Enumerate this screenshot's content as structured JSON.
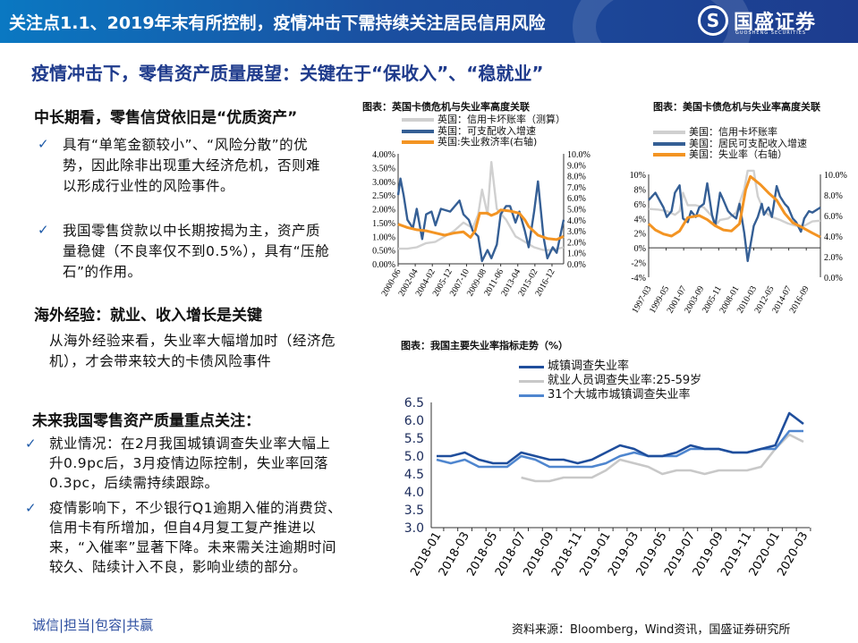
{
  "header": {
    "title": "关注点1.1、2019年末有所控制，疫情冲击下需持续关注居民信用风险",
    "logo_name": "国盛证券",
    "logo_en": "GUOSHENG SECURITIES",
    "logo_mark": "S"
  },
  "subtitle": "疫情冲击下，零售资产质量展望：关键在于“保收入”、“稳就业”",
  "left": {
    "section1": {
      "heading": "中长期看，零售信贷依旧是“优质资产”",
      "bullets": [
        "具有“单笔金额较小”、“风险分散”的优势，因此除非出现重大经济危机，否则难以形成行业性的风险事件。",
        "我国零售贷款以中长期按揭为主，资产质量稳健（不良率仅不到0.5%），具有“压舱石”的作用。"
      ]
    },
    "section2": {
      "heading": "海外经验：就业、收入增长是关键",
      "text": "从海外经验来看，失业率大幅增加时（经济危机），才会带来较大的卡债风险事件"
    },
    "section3": {
      "heading": "未来我国零售资产质量重点关注：",
      "bullets": [
        "就业情况：在2月我国城镇调查失业率大幅上升0.9pc后，3月疫情边际控制，失业率回落0.3pc，后续需持续跟踪。",
        "疫情影响下，不少银行Q1逾期入催的消费贷、信用卡有所增加，但自4月复工复产推进以来，“入催率”显著下降。未来需关注逾期时间较久、陆续计入不良，影响业绩的部分。"
      ]
    },
    "check_icon": "✓",
    "motto": "诚信|担当|包容|共赢"
  },
  "source": "资料来源：Bloomberg，Wind资讯，国盛证券研究所",
  "chart_data": [
    {
      "type": "line",
      "title": "图表：英国卡债危机与失业率高度关联",
      "xlim": [
        "2000-06",
        "2018-03"
      ],
      "xticks": [
        "2000-06",
        "2002-04",
        "2004-02",
        "2005-12",
        "2007-10",
        "2009-08",
        "2011-06",
        "2013-04",
        "2015-02",
        "2016-12"
      ],
      "yleft": {
        "lim": [
          0,
          4
        ],
        "ticks": [
          0,
          0.5,
          1,
          1.5,
          2,
          2.5,
          3,
          3.5,
          4
        ],
        "labels": [
          "0.00%",
          "0.50%",
          "1.00%",
          "1.50%",
          "2.00%",
          "2.50%",
          "3.00%",
          "3.50%",
          "4.00%"
        ]
      },
      "yright": {
        "lim": [
          0,
          10
        ],
        "ticks": [
          0,
          1,
          2,
          3,
          4,
          5,
          6,
          7,
          8,
          9,
          10
        ],
        "labels": [
          "0.0%",
          "1.0%",
          "2.0%",
          "3.0%",
          "4.0%",
          "5.0%",
          "6.0%",
          "7.0%",
          "8.0%",
          "9.0%",
          "10.0%"
        ]
      },
      "legend": "top-left",
      "grid": false,
      "series": [
        {
          "name": "英国：信用卡坏账率（测算）",
          "axis": "left",
          "color": "#d0d0d0",
          "points": [
            [
              "2000-06",
              0.55
            ],
            [
              "2001-06",
              0.55
            ],
            [
              "2002-06",
              0.6
            ],
            [
              "2003-06",
              0.75
            ],
            [
              "2004-06",
              0.8
            ],
            [
              "2005-06",
              1.0
            ],
            [
              "2006-06",
              1.2
            ],
            [
              "2007-06",
              1.5
            ],
            [
              "2008-06",
              1.3
            ],
            [
              "2009-01",
              1.8
            ],
            [
              "2009-06",
              2.7
            ],
            [
              "2010-01",
              1.8
            ],
            [
              "2010-06",
              3.7
            ],
            [
              "2011-01",
              2.0
            ],
            [
              "2012-01",
              1.6
            ],
            [
              "2013-01",
              1.0
            ],
            [
              "2014-01",
              0.8
            ],
            [
              "2015-01",
              0.6
            ],
            [
              "2016-01",
              0.5
            ],
            [
              "2017-01",
              0.5
            ],
            [
              "2018-03",
              0.6
            ]
          ]
        },
        {
          "name": "英国：可支配收入增速",
          "axis": "left",
          "color": "#355f95",
          "points": [
            [
              "2000-06",
              2.5
            ],
            [
              "2000-09",
              3.1
            ],
            [
              "2001-01",
              2.5
            ],
            [
              "2001-06",
              1.6
            ],
            [
              "2002-01",
              1.3
            ],
            [
              "2002-06",
              2.0
            ],
            [
              "2003-01",
              0.9
            ],
            [
              "2003-06",
              1.8
            ],
            [
              "2004-01",
              1.9
            ],
            [
              "2004-06",
              1.4
            ],
            [
              "2005-01",
              2.0
            ],
            [
              "2006-01",
              1.9
            ],
            [
              "2007-01",
              2.3
            ],
            [
              "2007-06",
              1.8
            ],
            [
              "2008-01",
              1.6
            ],
            [
              "2008-06",
              1.2
            ],
            [
              "2009-01",
              1.0
            ],
            [
              "2009-06",
              0.1
            ],
            [
              "2010-01",
              0.5
            ],
            [
              "2010-06",
              0.2
            ],
            [
              "2011-01",
              0.7
            ],
            [
              "2011-06",
              1.8
            ],
            [
              "2012-01",
              2.1
            ],
            [
              "2012-06",
              2.1
            ],
            [
              "2013-01",
              1.5
            ],
            [
              "2013-06",
              1.9
            ],
            [
              "2014-01",
              1.2
            ],
            [
              "2014-06",
              0.6
            ],
            [
              "2015-01",
              1.9
            ],
            [
              "2015-06",
              3.0
            ],
            [
              "2016-01",
              1.0
            ],
            [
              "2016-06",
              0.2
            ],
            [
              "2017-01",
              0.6
            ],
            [
              "2017-06",
              0.4
            ],
            [
              "2018-03",
              1.6
            ]
          ]
        },
        {
          "name": "英国:失业救济率(右轴)",
          "axis": "right",
          "color": "#f39423",
          "points": [
            [
              "2000-06",
              3.6
            ],
            [
              "2001-06",
              3.3
            ],
            [
              "2002-06",
              3.1
            ],
            [
              "2003-06",
              3.0
            ],
            [
              "2004-06",
              2.8
            ],
            [
              "2005-06",
              2.6
            ],
            [
              "2006-06",
              2.8
            ],
            [
              "2007-06",
              2.9
            ],
            [
              "2008-03",
              2.4
            ],
            [
              "2008-09",
              3.0
            ],
            [
              "2009-03",
              4.6
            ],
            [
              "2010-01",
              4.6
            ],
            [
              "2010-06",
              4.4
            ],
            [
              "2011-01",
              4.6
            ],
            [
              "2011-06",
              4.9
            ],
            [
              "2012-06",
              4.8
            ],
            [
              "2013-06",
              4.6
            ],
            [
              "2014-01",
              4.0
            ],
            [
              "2014-06",
              3.4
            ],
            [
              "2015-06",
              2.6
            ],
            [
              "2016-06",
              2.3
            ],
            [
              "2017-06",
              2.2
            ],
            [
              "2018-03",
              2.5
            ]
          ]
        }
      ]
    },
    {
      "type": "line",
      "title": "图表：美国卡债危机与失业率高度关联",
      "xlim": [
        "1997-03",
        "2018-06"
      ],
      "xticks": [
        "1997-03",
        "1999-05",
        "2001-07",
        "2003-09",
        "2005-11",
        "2008-01",
        "2010-03",
        "2012-05",
        "2014-07",
        "2016-09"
      ],
      "yleft": {
        "lim": [
          -4,
          10
        ],
        "ticks": [
          -4,
          -2,
          0,
          2,
          4,
          6,
          8,
          10
        ],
        "labels": [
          "-4%",
          "-2%",
          "0%",
          "2%",
          "4%",
          "6%",
          "8%",
          "10%"
        ]
      },
      "yright": {
        "lim": [
          0,
          10
        ],
        "ticks": [
          0,
          2,
          4,
          6,
          8,
          10
        ],
        "labels": [
          "0.0%",
          "2.0%",
          "4.0%",
          "6.0%",
          "8.0%",
          "10.0%"
        ]
      },
      "legend": "top-left",
      "grid": false,
      "series": [
        {
          "name": "美国：信用卡坏账率",
          "axis": "left",
          "color": "#d0d0d0",
          "points": [
            [
              "1997-03",
              5.3
            ],
            [
              "1998-06",
              5.2
            ],
            [
              "1999-06",
              5.0
            ],
            [
              "2000-06",
              4.5
            ],
            [
              "2001-01",
              5.0
            ],
            [
              "2001-06",
              7.5
            ],
            [
              "2002-01",
              5.8
            ],
            [
              "2003-01",
              5.8
            ],
            [
              "2004-01",
              5.5
            ],
            [
              "2005-01",
              4.3
            ],
            [
              "2005-06",
              3.0
            ],
            [
              "2006-01",
              3.8
            ],
            [
              "2007-01",
              4.0
            ],
            [
              "2008-01",
              4.8
            ],
            [
              "2009-01",
              8.0
            ],
            [
              "2009-06",
              10.5
            ],
            [
              "2010-03",
              10.5
            ],
            [
              "2010-09",
              7.0
            ],
            [
              "2011-06",
              5.0
            ],
            [
              "2012-06",
              4.2
            ],
            [
              "2013-06",
              3.8
            ],
            [
              "2014-06",
              3.3
            ],
            [
              "2015-06",
              3.0
            ],
            [
              "2016-06",
              3.0
            ],
            [
              "2017-06",
              3.6
            ],
            [
              "2018-06",
              3.7
            ]
          ]
        },
        {
          "name": "美国：居民可支配收入增速",
          "axis": "left",
          "color": "#355f95",
          "points": [
            [
              "1997-03",
              6.5
            ],
            [
              "1998-01",
              7.5
            ],
            [
              "1999-01",
              5.5
            ],
            [
              "1999-06",
              4.2
            ],
            [
              "2000-01",
              5.0
            ],
            [
              "2000-06",
              7.5
            ],
            [
              "2001-01",
              8.5
            ],
            [
              "2001-06",
              4.0
            ],
            [
              "2002-01",
              3.5
            ],
            [
              "2002-06",
              5.0
            ],
            [
              "2003-01",
              4.2
            ],
            [
              "2003-06",
              5.5
            ],
            [
              "2004-01",
              6.0
            ],
            [
              "2004-06",
              8.8
            ],
            [
              "2005-01",
              4.5
            ],
            [
              "2005-06",
              3.0
            ],
            [
              "2006-01",
              7.5
            ],
            [
              "2006-06",
              6.5
            ],
            [
              "2007-01",
              5.0
            ],
            [
              "2007-06",
              4.5
            ],
            [
              "2008-01",
              4.0
            ],
            [
              "2008-06",
              6.0
            ],
            [
              "2009-01",
              2.0
            ],
            [
              "2009-06",
              -1.8
            ],
            [
              "2010-03",
              3.0
            ],
            [
              "2010-09",
              4.2
            ],
            [
              "2011-03",
              6.0
            ],
            [
              "2011-06",
              4.5
            ],
            [
              "2012-01",
              5.5
            ],
            [
              "2012-06",
              4.2
            ],
            [
              "2013-01",
              8.4
            ],
            [
              "2013-06",
              7.0
            ],
            [
              "2014-01",
              6.0
            ],
            [
              "2014-06",
              5.5
            ],
            [
              "2015-01",
              4.0
            ],
            [
              "2015-06",
              3.5
            ],
            [
              "2016-01",
              2.2
            ],
            [
              "2016-06",
              4.0
            ],
            [
              "2017-01",
              5.0
            ],
            [
              "2017-06",
              4.8
            ],
            [
              "2018-06",
              5.5
            ]
          ]
        },
        {
          "name": "美国：失业率（右轴）",
          "axis": "right",
          "color": "#f39423",
          "points": [
            [
              "1997-03",
              5.2
            ],
            [
              "1998-01",
              4.6
            ],
            [
              "1999-01",
              4.2
            ],
            [
              "2000-01",
              4.0
            ],
            [
              "2001-01",
              4.5
            ],
            [
              "2002-01",
              5.8
            ],
            [
              "2003-06",
              6.0
            ],
            [
              "2004-06",
              5.6
            ],
            [
              "2005-06",
              5.0
            ],
            [
              "2006-06",
              4.6
            ],
            [
              "2007-06",
              4.5
            ],
            [
              "2008-06",
              5.2
            ],
            [
              "2009-03",
              8.5
            ],
            [
              "2009-10",
              9.8
            ],
            [
              "2011-01",
              9.0
            ],
            [
              "2012-01",
              8.2
            ],
            [
              "2013-01",
              7.5
            ],
            [
              "2014-01",
              6.2
            ],
            [
              "2015-01",
              5.3
            ],
            [
              "2016-01",
              4.9
            ],
            [
              "2017-06",
              4.3
            ],
            [
              "2018-06",
              3.9
            ]
          ]
        }
      ]
    },
    {
      "type": "line",
      "title": "图表：我国主要失业率指标走势（%）",
      "categories": [
        "2018-01",
        "2018-02",
        "2018-03",
        "2018-04",
        "2018-05",
        "2018-06",
        "2018-07",
        "2018-08",
        "2018-09",
        "2018-10",
        "2018-11",
        "2018-12",
        "2019-01",
        "2019-02",
        "2019-03",
        "2019-04",
        "2019-05",
        "2019-06",
        "2019-07",
        "2019-08",
        "2019-09",
        "2019-10",
        "2019-11",
        "2019-12",
        "2020-01",
        "2020-02",
        "2020-03"
      ],
      "xticks": [
        "2018-01",
        "2018-03",
        "2018-05",
        "2018-07",
        "2018-09",
        "2018-11",
        "2019-01",
        "2019-03",
        "2019-05",
        "2019-07",
        "2019-09",
        "2019-11",
        "2020-01",
        "2020-03"
      ],
      "ylim": [
        3.0,
        6.5
      ],
      "yticks": [
        "3.0",
        "3.5",
        "4.0",
        "4.5",
        "5.0",
        "5.5",
        "6.0",
        "6.5"
      ],
      "legend": "top",
      "grid": false,
      "series": [
        {
          "name": "城镇调查失业率",
          "color": "#1f4e9c",
          "values": [
            5.0,
            5.0,
            5.1,
            4.9,
            4.8,
            4.8,
            5.1,
            5.0,
            4.9,
            4.9,
            4.8,
            4.9,
            5.1,
            5.3,
            5.2,
            5.0,
            5.0,
            5.1,
            5.3,
            5.2,
            5.2,
            5.1,
            5.1,
            5.2,
            5.3,
            6.2,
            5.9
          ]
        },
        {
          "name": "就业人员调查失业率:25-59岁",
          "color": "#c8c8c8",
          "values": [
            null,
            null,
            null,
            null,
            null,
            null,
            4.4,
            4.3,
            4.3,
            4.4,
            4.4,
            4.4,
            4.6,
            4.9,
            4.8,
            4.7,
            4.5,
            4.6,
            4.6,
            4.5,
            4.6,
            4.6,
            4.6,
            4.7,
            5.2,
            5.6,
            5.4
          ]
        },
        {
          "name": "31个大城市城镇调查失业率",
          "color": "#4f86cf",
          "values": [
            4.9,
            4.8,
            4.9,
            4.7,
            4.7,
            4.7,
            5.0,
            4.9,
            4.7,
            4.7,
            4.7,
            4.7,
            4.8,
            5.0,
            5.1,
            5.0,
            5.0,
            5.0,
            5.2,
            5.2,
            5.2,
            5.1,
            5.1,
            5.2,
            5.2,
            5.7,
            5.7
          ]
        }
      ]
    }
  ]
}
